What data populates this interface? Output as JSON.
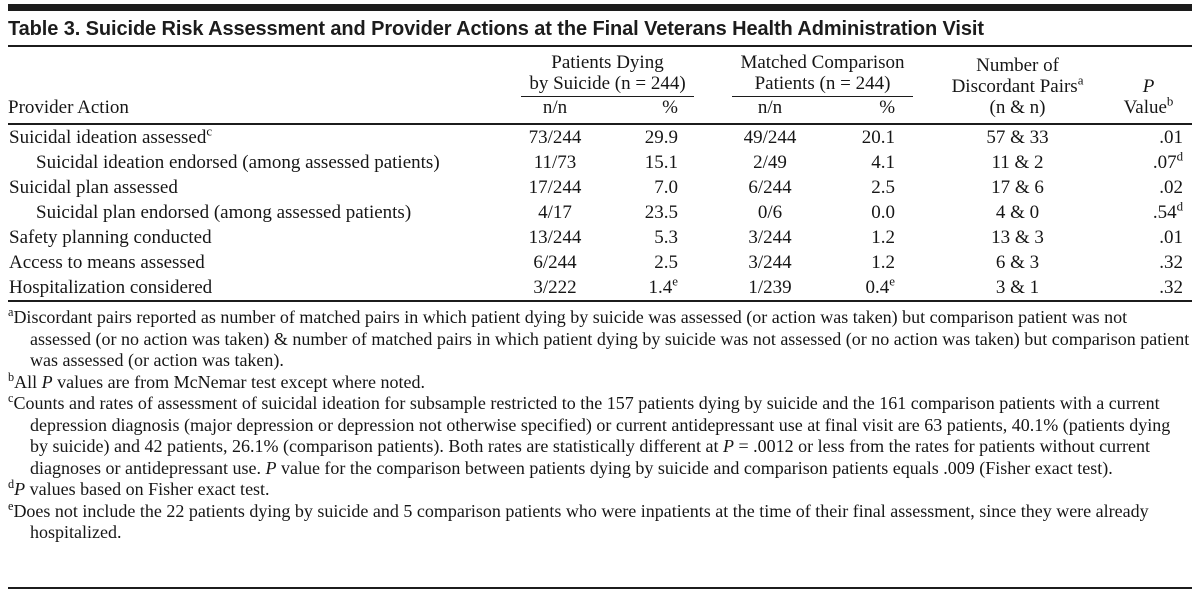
{
  "table": {
    "title": "Table 3. Suicide Risk Assessment and Provider Actions at the Final Veterans Health Administration Visit",
    "columns": {
      "provider_action": "Provider Action",
      "group_suicide": {
        "line1": "Patients Dying",
        "line2": "by Suicide (n = 244)",
        "sub_nn": "n/n",
        "sub_pct": "%"
      },
      "group_comparison": {
        "line1": "Matched Comparison",
        "line2": "Patients (n = 244)",
        "sub_nn": "n/n",
        "sub_pct": "%"
      },
      "group_discordant": {
        "line1": "Number of",
        "line2": "Discordant Pairs^a",
        "line3": "(n & n)"
      },
      "group_pvalue": {
        "line1": "*P*",
        "line2": "Value^b"
      }
    },
    "rows": [
      {
        "label": "Suicidal ideation assessed^c",
        "indent": false,
        "g1_nn": "73/244",
        "g1_pct": "29.9",
        "g2_nn": "49/244",
        "g2_pct": "20.1",
        "pairs": "57 & 33",
        "p": ".01"
      },
      {
        "label": "Suicidal ideation endorsed (among assessed patients)",
        "indent": true,
        "g1_nn": "11/73",
        "g1_pct": "15.1",
        "g2_nn": "2/49",
        "g2_pct": "4.1",
        "pairs": "11 & 2",
        "p": ".07^d"
      },
      {
        "label": "Suicidal plan assessed",
        "indent": false,
        "g1_nn": "17/244",
        "g1_pct": "7.0",
        "g2_nn": "6/244",
        "g2_pct": "2.5",
        "pairs": "17 & 6",
        "p": ".02"
      },
      {
        "label": "Suicidal plan endorsed (among assessed patients)",
        "indent": true,
        "g1_nn": "4/17",
        "g1_pct": "23.5",
        "g2_nn": "0/6",
        "g2_pct": "0.0",
        "pairs": "4 & 0",
        "p": ".54^d"
      },
      {
        "label": "Safety planning conducted",
        "indent": false,
        "g1_nn": "13/244",
        "g1_pct": "5.3",
        "g2_nn": "3/244",
        "g2_pct": "1.2",
        "pairs": "13 & 3",
        "p": ".01"
      },
      {
        "label": "Access to means assessed",
        "indent": false,
        "g1_nn": "6/244",
        "g1_pct": "2.5",
        "g2_nn": "3/244",
        "g2_pct": "1.2",
        "pairs": "6 & 3",
        "p": ".32"
      },
      {
        "label": "Hospitalization considered",
        "indent": false,
        "g1_nn": "3/222",
        "g1_pct": "1.4^e",
        "g2_nn": "1/239",
        "g2_pct": "0.4^e",
        "pairs": "3 & 1",
        "p": ".32"
      }
    ],
    "footnotes": [
      {
        "marker": "a",
        "text": "Discordant pairs reported as number of matched pairs in which patient dying by suicide was assessed (or action was taken) but comparison patient was not assessed (or no action was taken) & number of matched pairs in which patient dying by suicide was not assessed (or no action was taken) but comparison patient was assessed (or action was taken)."
      },
      {
        "marker": "b",
        "text": "All *P* values are from McNemar test except where noted."
      },
      {
        "marker": "c",
        "text": "Counts and rates of assessment of suicidal ideation for subsample restricted to the 157 patients dying by suicide and the 161 comparison patients with a current depression diagnosis (major depression or depression not otherwise specified) or current antidepressant use at final visit are 63 patients, 40.1% (patients dying by suicide) and 42 patients, 26.1% (comparison patients). Both rates are statistically different at *P* = .0012 or less from the rates for patients without current diagnoses or antidepressant use. *P* value for the comparison between patients dying by suicide and comparison patients equals .009 (Fisher exact test)."
      },
      {
        "marker": "d",
        "text": "*P* values based on Fisher exact test."
      },
      {
        "marker": "e",
        "text": "Does not include the 22 patients dying by suicide and 5 comparison patients who were inpatients at the time of their final assessment, since they were already hospitalized."
      }
    ]
  }
}
